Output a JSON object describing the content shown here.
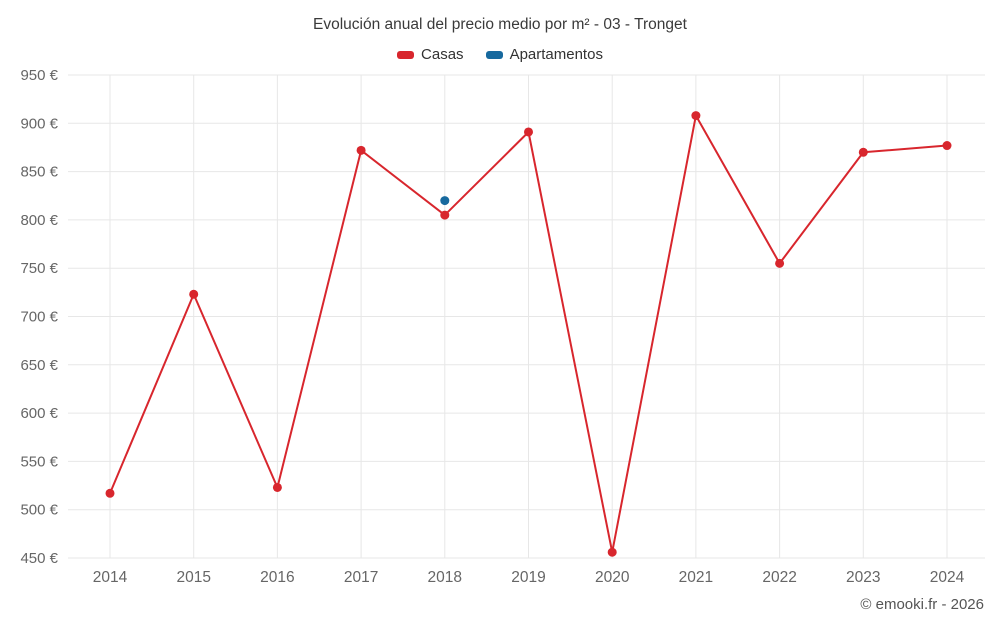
{
  "title": "Evolución anual del precio medio por m² - 03 - Tronget",
  "legend": {
    "items": [
      {
        "label": "Casas",
        "color": "#d8262d"
      },
      {
        "label": "Apartamentos",
        "color": "#17699e"
      }
    ]
  },
  "footer": {
    "credit": "© emooki.fr - 2026"
  },
  "chart_data": {
    "type": "line",
    "title": "Evolución anual del precio medio por m² - 03 - Tronget",
    "x": [
      "2014",
      "2015",
      "2016",
      "2017",
      "2018",
      "2019",
      "2020",
      "2021",
      "2022",
      "2023",
      "2024"
    ],
    "series": [
      {
        "name": "Casas",
        "color": "#d8262d",
        "values": [
          517,
          723,
          523,
          872,
          805,
          891,
          456,
          908,
          755,
          870,
          877
        ]
      },
      {
        "name": "Apartamentos",
        "color": "#17699e",
        "values": [
          null,
          null,
          null,
          null,
          820,
          null,
          null,
          null,
          null,
          null,
          null
        ]
      }
    ],
    "ylim": [
      450,
      950
    ],
    "ytick_step": 50,
    "ytick_suffix": " €",
    "xlabel": "",
    "ylabel": "",
    "grid": "both",
    "grid_color": "#e7e7e7",
    "tick_color": "#666666",
    "legend_position": "top"
  }
}
